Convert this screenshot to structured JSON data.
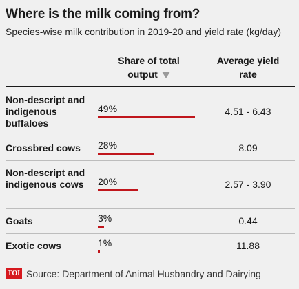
{
  "title": "Where is the milk coming from?",
  "subtitle": "Species-wise milk contribution in 2019-20 and yield rate (kg/day)",
  "columns": {
    "share": "Share of total output",
    "yield": "Average yield rate"
  },
  "source": {
    "logo": "TOI",
    "text": "Source: Department of Animal Husbandry and Dairying"
  },
  "colors": {
    "bar": "#c0161c",
    "background": "#f0f0f0"
  },
  "chart_data": {
    "type": "table",
    "title": "Where is the milk coming from?",
    "subtitle": "Species-wise milk contribution in 2019-20 and yield rate (kg/day)",
    "columns": [
      "Share of total output",
      "Average yield rate"
    ],
    "rows": [
      {
        "category": "Non-descript and indigenous buffaloes",
        "share": 49,
        "share_label": "49%",
        "yield": "4.51 - 6.43"
      },
      {
        "category": "Crossbred cows",
        "share": 28,
        "share_label": "28%",
        "yield": "8.09"
      },
      {
        "category": "Non-descript and indigenous cows",
        "share": 20,
        "share_label": "20%",
        "yield": "2.57 - 3.90"
      },
      {
        "category": "Goats",
        "share": 3,
        "share_label": "3%",
        "yield": "0.44"
      },
      {
        "category": "Exotic cows",
        "share": 1,
        "share_label": "1%",
        "yield": "11.88"
      }
    ],
    "sorted_by": "Share of total output"
  }
}
